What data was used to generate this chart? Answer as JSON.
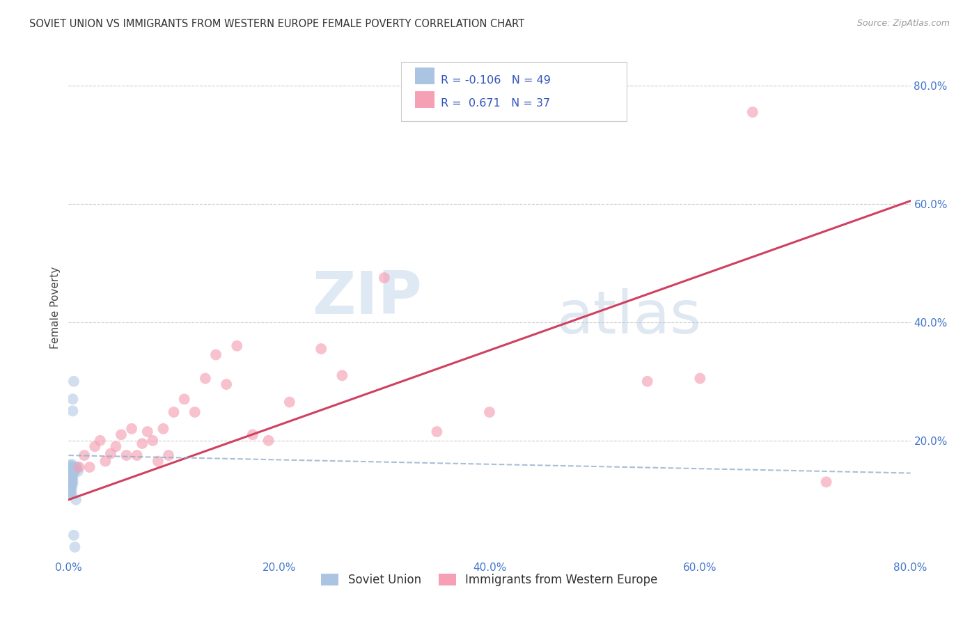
{
  "title": "SOVIET UNION VS IMMIGRANTS FROM WESTERN EUROPE FEMALE POVERTY CORRELATION CHART",
  "source": "Source: ZipAtlas.com",
  "ylabel": "Female Poverty",
  "xlim": [
    0.0,
    0.8
  ],
  "ylim": [
    0.0,
    0.85
  ],
  "xticks": [
    0.0,
    0.2,
    0.4,
    0.6,
    0.8
  ],
  "yticks": [
    0.2,
    0.4,
    0.6,
    0.8
  ],
  "xticklabels": [
    "0.0%",
    "20.0%",
    "40.0%",
    "60.0%",
    "80.0%"
  ],
  "yticklabels": [
    "20.0%",
    "40.0%",
    "60.0%",
    "80.0%"
  ],
  "legend_labels": [
    "Soviet Union",
    "Immigrants from Western Europe"
  ],
  "soviet_R": "-0.106",
  "soviet_N": "49",
  "western_R": "0.671",
  "western_N": "37",
  "soviet_color": "#aac4e2",
  "western_color": "#f5a0b5",
  "soviet_line_color": "#8aaac8",
  "western_line_color": "#d04060",
  "watermark_zip": "ZIP",
  "watermark_atlas": "atlas",
  "soviet_points_x": [
    0.001,
    0.001,
    0.001,
    0.001,
    0.001,
    0.001,
    0.001,
    0.001,
    0.001,
    0.001,
    0.002,
    0.002,
    0.002,
    0.002,
    0.002,
    0.002,
    0.002,
    0.002,
    0.002,
    0.002,
    0.003,
    0.003,
    0.003,
    0.003,
    0.003,
    0.003,
    0.003,
    0.003,
    0.003,
    0.003,
    0.004,
    0.004,
    0.004,
    0.004,
    0.004,
    0.004,
    0.004,
    0.004,
    0.005,
    0.005,
    0.005,
    0.005,
    0.006,
    0.006,
    0.006,
    0.007,
    0.007,
    0.008,
    0.009
  ],
  "soviet_points_y": [
    0.155,
    0.148,
    0.145,
    0.14,
    0.135,
    0.13,
    0.125,
    0.12,
    0.115,
    0.108,
    0.158,
    0.152,
    0.148,
    0.143,
    0.138,
    0.133,
    0.128,
    0.123,
    0.118,
    0.112,
    0.16,
    0.155,
    0.15,
    0.145,
    0.14,
    0.135,
    0.13,
    0.125,
    0.118,
    0.11,
    0.27,
    0.25,
    0.155,
    0.148,
    0.143,
    0.138,
    0.132,
    0.127,
    0.3,
    0.155,
    0.148,
    0.04,
    0.155,
    0.148,
    0.02,
    0.155,
    0.1,
    0.155,
    0.148
  ],
  "western_points_x": [
    0.01,
    0.015,
    0.02,
    0.025,
    0.03,
    0.035,
    0.04,
    0.045,
    0.05,
    0.055,
    0.06,
    0.065,
    0.07,
    0.075,
    0.08,
    0.085,
    0.09,
    0.095,
    0.1,
    0.11,
    0.12,
    0.13,
    0.14,
    0.15,
    0.16,
    0.175,
    0.19,
    0.21,
    0.24,
    0.26,
    0.3,
    0.35,
    0.4,
    0.55,
    0.6,
    0.65,
    0.72
  ],
  "western_points_y": [
    0.155,
    0.175,
    0.155,
    0.19,
    0.2,
    0.165,
    0.178,
    0.19,
    0.21,
    0.175,
    0.22,
    0.175,
    0.195,
    0.215,
    0.2,
    0.165,
    0.22,
    0.175,
    0.248,
    0.27,
    0.248,
    0.305,
    0.345,
    0.295,
    0.36,
    0.21,
    0.2,
    0.265,
    0.355,
    0.31,
    0.475,
    0.215,
    0.248,
    0.3,
    0.305,
    0.755,
    0.13
  ],
  "western_line_x0": 0.0,
  "western_line_y0": 0.1,
  "western_line_x1": 0.8,
  "western_line_y1": 0.605,
  "soviet_line_x0": 0.0,
  "soviet_line_y0": 0.175,
  "soviet_line_x1": 0.8,
  "soviet_line_y1": 0.145
}
